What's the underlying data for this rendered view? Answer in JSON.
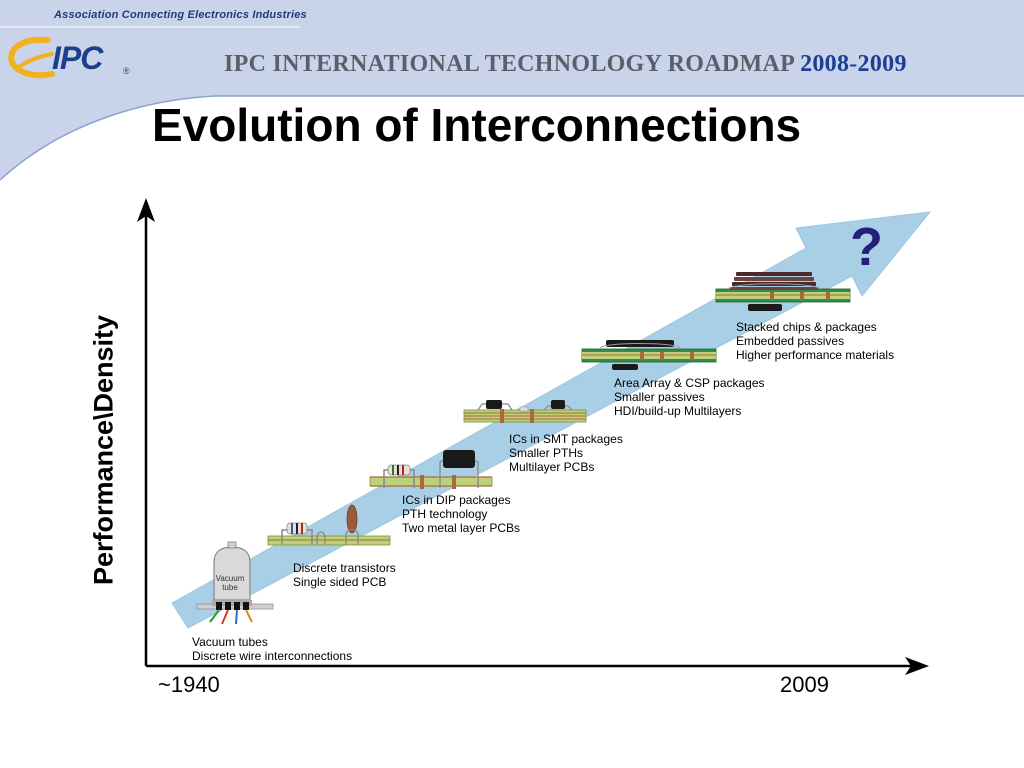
{
  "header": {
    "association": "Association Connecting Electronics Industries",
    "logo": "IPC",
    "roadmap_main": "IPC INTERNATIONAL TECHNOLOGY ROADMAP",
    "roadmap_years": "2008-2009"
  },
  "title": "Evolution of Interconnections",
  "axis": {
    "y_label": "Performance\\Density",
    "x_start": "~1940",
    "x_end": "2009"
  },
  "vacuum_tube_label": {
    "line1": "Vacuum",
    "line2": "tube"
  },
  "future_mark": "?",
  "stages": [
    {
      "lines": [
        "Vacuum tubes",
        "Discrete wire interconnections"
      ]
    },
    {
      "lines": [
        "Discrete transistors",
        "Single sided PCB"
      ]
    },
    {
      "lines": [
        "ICs in DIP packages",
        "PTH technology",
        "Two metal layer PCBs"
      ]
    },
    {
      "lines": [
        "ICs in SMT packages",
        "Smaller PTHs",
        "Multilayer PCBs"
      ]
    },
    {
      "lines": [
        "Area Array & CSP packages",
        "Smaller passives",
        "HDI/build-up Multilayers"
      ]
    },
    {
      "lines": [
        "Stacked chips & packages",
        "Embedded passives",
        "Higher performance materials"
      ]
    }
  ],
  "colors": {
    "banner": "#c9d3ea",
    "arrow": "#a9cfe6",
    "pcb": "#bcd17a",
    "brand_blue": "#1c3f8c"
  }
}
